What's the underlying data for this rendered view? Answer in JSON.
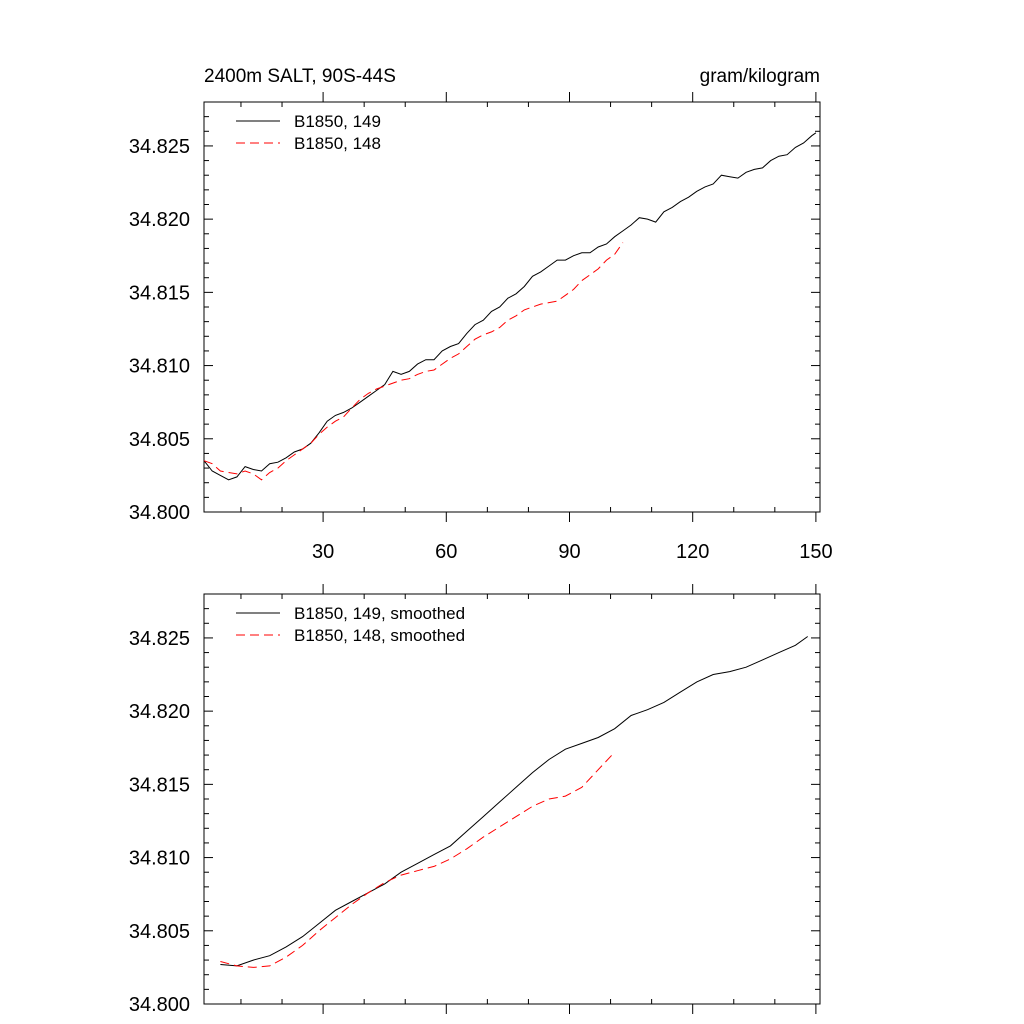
{
  "chart_data": [
    {
      "type": "line",
      "title": "2400m SALT, 90S-44S",
      "units": "gram/kilogram",
      "xlabel": "",
      "ylabel": "",
      "xlim": [
        1,
        151
      ],
      "ylim": [
        34.8,
        34.828
      ],
      "xticks": [
        30,
        60,
        90,
        120,
        150
      ],
      "xtick_labels": [
        "30",
        "60",
        "90",
        "120",
        "150"
      ],
      "yticks": [
        34.8,
        34.805,
        34.81,
        34.815,
        34.82,
        34.825
      ],
      "ytick_labels": [
        "34.800",
        "34.805",
        "34.810",
        "34.815",
        "34.820",
        "34.825"
      ],
      "grid": false,
      "legend_position": "top-left",
      "series": [
        {
          "name": "B1850, 149",
          "color": "#000000",
          "dash": "solid",
          "x": [
            1,
            3,
            5,
            7,
            9,
            11,
            13,
            15,
            17,
            19,
            21,
            23,
            25,
            27,
            29,
            31,
            33,
            35,
            37,
            39,
            41,
            43,
            45,
            47,
            49,
            51,
            53,
            55,
            57,
            59,
            61,
            63,
            65,
            67,
            69,
            71,
            73,
            75,
            77,
            79,
            81,
            83,
            85,
            87,
            89,
            91,
            93,
            95,
            97,
            99,
            101,
            103,
            105,
            107,
            109,
            111,
            113,
            115,
            117,
            119,
            121,
            123,
            125,
            127,
            129,
            131,
            133,
            135,
            137,
            139,
            141,
            143,
            145,
            147,
            149,
            150
          ],
          "y": [
            34.8035,
            34.8028,
            34.8025,
            34.8022,
            34.8024,
            34.8031,
            34.8029,
            34.8028,
            34.8033,
            34.8034,
            34.8037,
            34.8041,
            34.8043,
            34.8047,
            34.8054,
            34.8062,
            34.8066,
            34.8068,
            34.8071,
            34.8075,
            34.8079,
            34.8083,
            34.8087,
            34.8096,
            34.8094,
            34.8096,
            34.8101,
            34.8104,
            34.8104,
            34.811,
            34.8113,
            34.8115,
            34.8122,
            34.8128,
            34.8131,
            34.8137,
            34.814,
            34.8146,
            34.8149,
            34.8154,
            34.8161,
            34.8164,
            34.8168,
            34.8172,
            34.8172,
            34.8175,
            34.8177,
            34.8177,
            34.8181,
            34.8183,
            34.8188,
            34.8192,
            34.8196,
            34.8201,
            34.82,
            34.8198,
            34.8205,
            34.8208,
            34.8212,
            34.8215,
            34.8219,
            34.8222,
            34.8224,
            34.823,
            34.8229,
            34.8228,
            34.8232,
            34.8234,
            34.8235,
            34.824,
            34.8243,
            34.8244,
            34.8249,
            34.8252,
            34.8257,
            34.8259
          ]
        },
        {
          "name": "B1850, 148",
          "color": "#ff0000",
          "dash": "dashed",
          "x": [
            1,
            3,
            5,
            7,
            9,
            11,
            13,
            15,
            17,
            19,
            21,
            23,
            25,
            27,
            29,
            31,
            33,
            35,
            37,
            39,
            41,
            43,
            45,
            47,
            49,
            51,
            53,
            55,
            57,
            59,
            61,
            63,
            65,
            67,
            69,
            71,
            73,
            75,
            77,
            79,
            81,
            83,
            85,
            87,
            89,
            91,
            93,
            95,
            97,
            99,
            101,
            103
          ],
          "y": [
            34.8035,
            34.8033,
            34.8028,
            34.8027,
            34.8026,
            34.8028,
            34.8026,
            34.8022,
            34.8027,
            34.803,
            34.8035,
            34.8039,
            34.8043,
            34.8047,
            34.8053,
            34.8058,
            34.8062,
            34.8065,
            34.8071,
            34.8077,
            34.8081,
            34.8084,
            34.8086,
            34.8088,
            34.809,
            34.8091,
            34.8094,
            34.8096,
            34.8097,
            34.8101,
            34.8105,
            34.8108,
            34.8113,
            34.8118,
            34.8121,
            34.8123,
            34.8126,
            34.8131,
            34.8134,
            34.8138,
            34.814,
            34.8142,
            34.8143,
            34.8144,
            34.8148,
            34.8152,
            34.8158,
            34.8162,
            34.8166,
            34.8172,
            34.8176,
            34.8184
          ]
        }
      ]
    },
    {
      "type": "line",
      "title": "",
      "xlabel": "",
      "ylabel": "",
      "xlim": [
        1,
        151
      ],
      "ylim": [
        34.8,
        34.828
      ],
      "xticks": [
        30,
        60,
        90,
        120,
        150
      ],
      "xtick_labels": [
        "",
        "",
        "",
        "",
        ""
      ],
      "yticks": [
        34.8,
        34.805,
        34.81,
        34.815,
        34.82,
        34.825
      ],
      "ytick_labels": [
        "34.800",
        "34.805",
        "34.810",
        "34.815",
        "34.820",
        "34.825"
      ],
      "grid": false,
      "legend_position": "top-left",
      "series": [
        {
          "name": "B1850, 149, smoothed",
          "color": "#000000",
          "dash": "solid",
          "x": [
            5,
            9,
            13,
            17,
            21,
            25,
            29,
            33,
            37,
            41,
            45,
            49,
            53,
            57,
            61,
            65,
            69,
            73,
            77,
            81,
            85,
            89,
            93,
            97,
            101,
            105,
            109,
            113,
            117,
            121,
            125,
            129,
            133,
            137,
            141,
            145,
            148
          ],
          "y": [
            34.8027,
            34.8026,
            34.803,
            34.8033,
            34.8039,
            34.8046,
            34.8055,
            34.8064,
            34.807,
            34.8076,
            34.8082,
            34.809,
            34.8096,
            34.8102,
            34.8108,
            34.8118,
            34.8128,
            34.8138,
            34.8148,
            34.8158,
            34.8167,
            34.8174,
            34.8178,
            34.8182,
            34.8188,
            34.8197,
            34.8201,
            34.8206,
            34.8213,
            34.822,
            34.8225,
            34.8227,
            34.823,
            34.8235,
            34.824,
            34.8245,
            34.8251
          ]
        },
        {
          "name": "B1850, 148, smoothed",
          "color": "#ff0000",
          "dash": "dashed",
          "x": [
            5,
            9,
            13,
            17,
            21,
            25,
            29,
            33,
            37,
            41,
            45,
            49,
            53,
            57,
            61,
            65,
            69,
            73,
            77,
            81,
            85,
            89,
            93,
            97,
            101
          ],
          "y": [
            34.8029,
            34.8026,
            34.8025,
            34.8026,
            34.8032,
            34.804,
            34.805,
            34.8059,
            34.8068,
            34.8076,
            34.8083,
            34.8088,
            34.8091,
            34.8094,
            34.8099,
            34.8106,
            34.8114,
            34.8121,
            34.8128,
            34.8135,
            34.814,
            34.8142,
            34.8148,
            34.816,
            34.8172
          ]
        }
      ]
    }
  ]
}
